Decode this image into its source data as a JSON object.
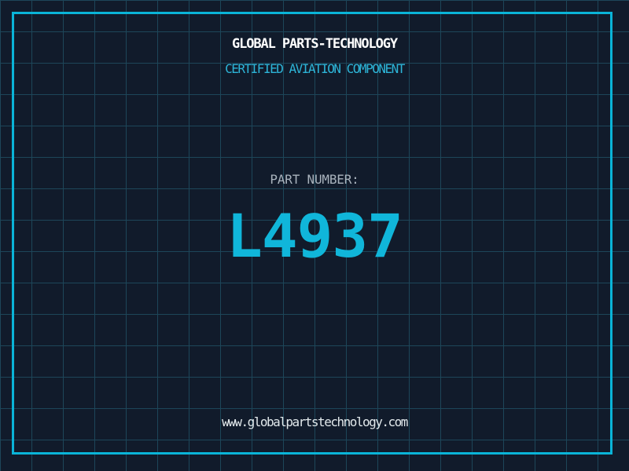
{
  "brand": {
    "title": "GLOBAL PARTS-TECHNOLOGY",
    "subtitle": "CERTIFIED AVIATION COMPONENT"
  },
  "part": {
    "label": "PART NUMBER:",
    "number": "L4937"
  },
  "footer": {
    "website": "www.globalpartstechnology.com"
  },
  "colors": {
    "background": "#111b2b",
    "grid_line": "#1d4659",
    "frame_border": "#0ab4d8",
    "title_text": "#ffffff",
    "subtitle_text": "#2db5d8",
    "part_label_text": "#a9b3bd",
    "part_number_text": "#10b6da",
    "website_text": "#e2e9ec"
  }
}
